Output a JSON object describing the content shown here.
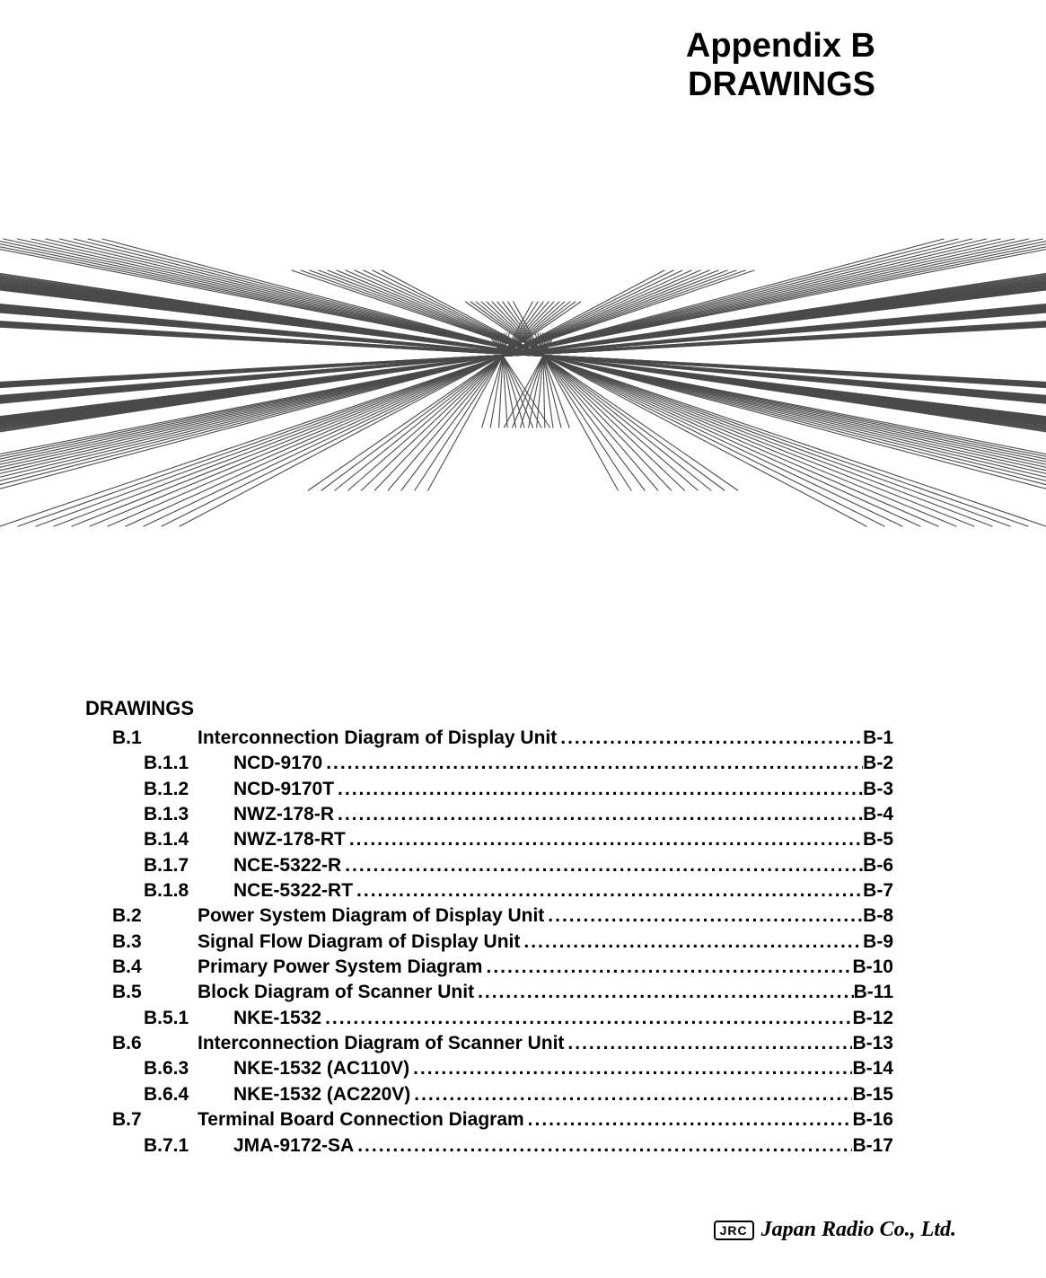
{
  "title_line1": "Appendix B",
  "title_line2": "DRAWINGS",
  "toc_heading": "DRAWINGS",
  "footer": {
    "logo_box": "JRC",
    "logo_text": "Japan Radio Co., Ltd."
  },
  "graphic": {
    "stroke_color": "#4a4a4a",
    "background": "#ffffff"
  },
  "toc": [
    {
      "level": 1,
      "num": "B.1",
      "title": "Interconnection Diagram of Display Unit",
      "page": "B-1"
    },
    {
      "level": 2,
      "num": "B.1.1",
      "title": "NCD-9170",
      "page": "B-2"
    },
    {
      "level": 2,
      "num": "B.1.2",
      "title": "NCD-9170T",
      "page": "B-3"
    },
    {
      "level": 2,
      "num": "B.1.3",
      "title": "NWZ-178-R",
      "page": "B-4"
    },
    {
      "level": 2,
      "num": "B.1.4",
      "title": "NWZ-178-RT",
      "page": "B-5"
    },
    {
      "level": 2,
      "num": "B.1.7",
      "title": "NCE-5322-R",
      "page": "B-6"
    },
    {
      "level": 2,
      "num": "B.1.8",
      "title": "NCE-5322-RT",
      "page": "B-7"
    },
    {
      "level": 1,
      "num": "B.2",
      "title": "Power System Diagram of Display Unit",
      "page": "B-8"
    },
    {
      "level": 1,
      "num": "B.3",
      "title": "Signal Flow Diagram of Display Unit",
      "page": "B-9"
    },
    {
      "level": 1,
      "num": "B.4",
      "title": "Primary Power System Diagram",
      "page": "B-10"
    },
    {
      "level": 1,
      "num": "B.5",
      "title": "Block Diagram of Scanner Unit",
      "page": "B-11"
    },
    {
      "level": 2,
      "num": "B.5.1",
      "title": "NKE-1532",
      "page": "B-12"
    },
    {
      "level": 1,
      "num": "B.6",
      "title": "Interconnection Diagram of Scanner Unit",
      "page": "B-13"
    },
    {
      "level": 2,
      "num": "B.6.3",
      "title": "NKE-1532 (AC110V)",
      "page": "B-14"
    },
    {
      "level": 2,
      "num": "B.6.4",
      "title": "NKE-1532 (AC220V)",
      "page": "B-15"
    },
    {
      "level": 1,
      "num": "B.7",
      "title": "Terminal Board Connection Diagram",
      "page": "B-16"
    },
    {
      "level": 2,
      "num": "B.7.1",
      "title": "JMA-9172-SA",
      "page": "B-17"
    }
  ]
}
